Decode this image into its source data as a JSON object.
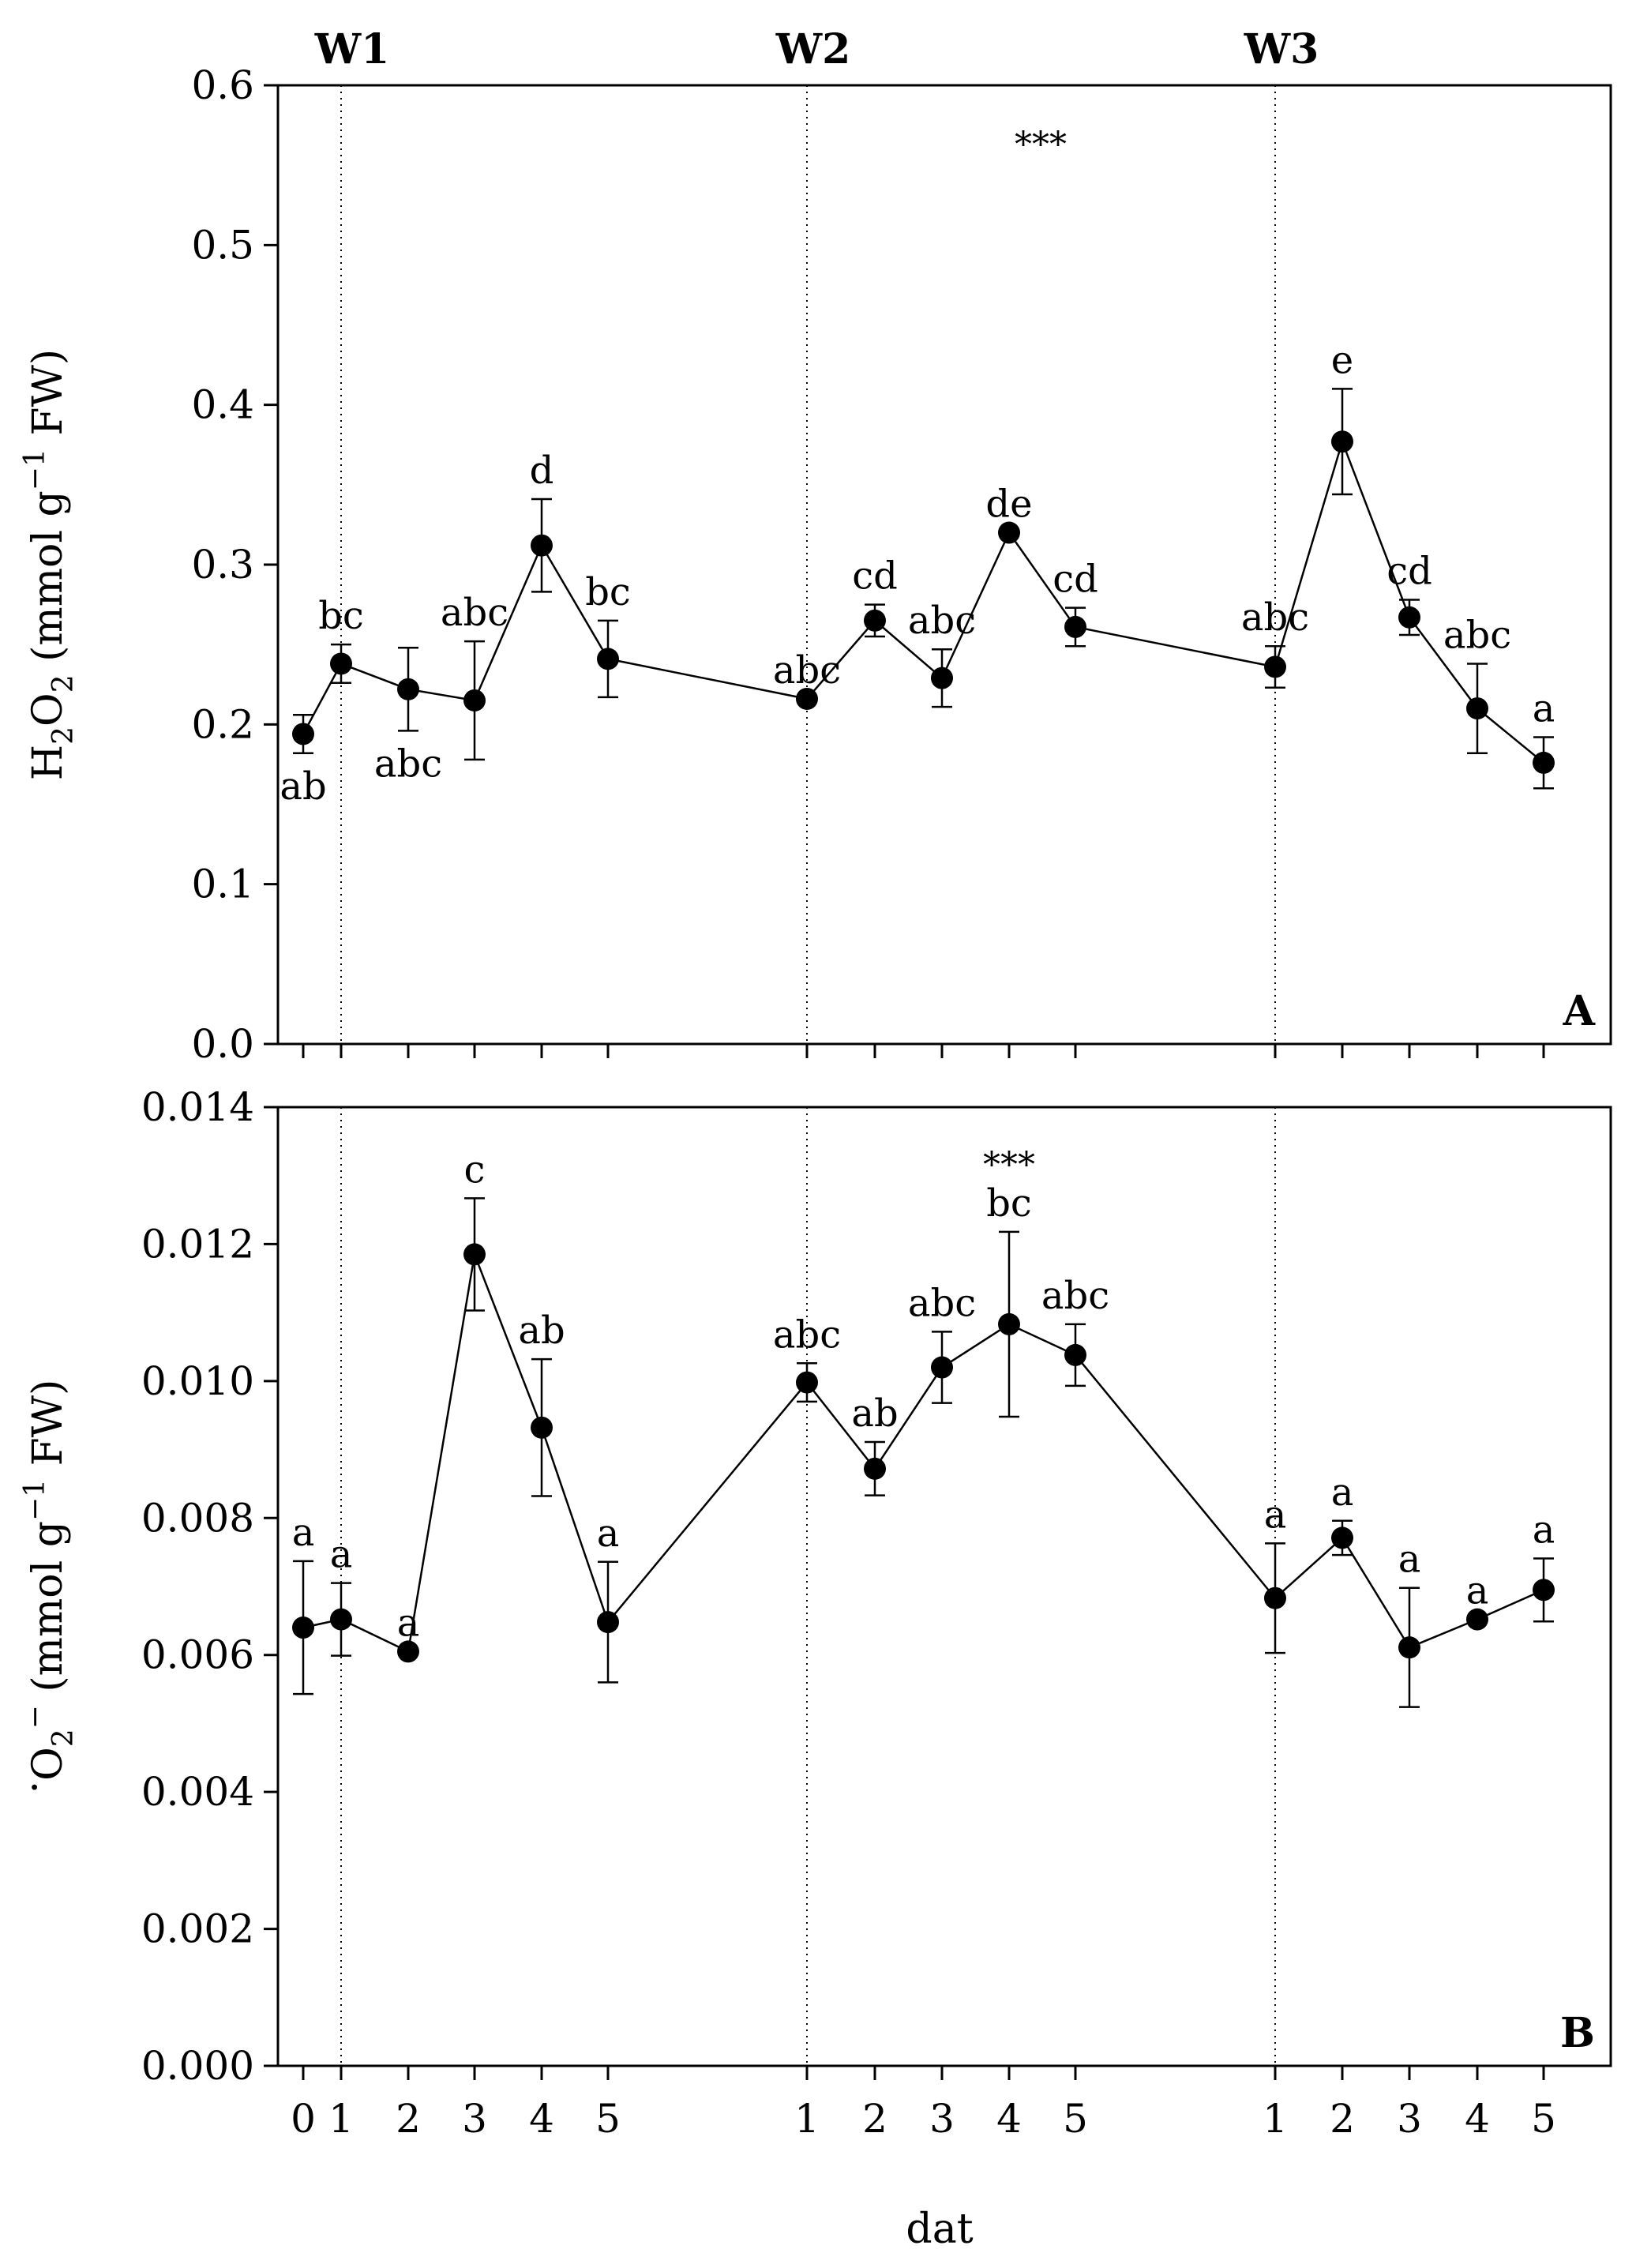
{
  "chart_data": {
    "type": "line",
    "x_tick_labels": [
      "0",
      "1",
      "2",
      "3",
      "4",
      "5",
      "1",
      "2",
      "3",
      "4",
      "5",
      "1",
      "2",
      "3",
      "4",
      "5"
    ],
    "x_axis_label": "dat",
    "week_labels": [
      {
        "label": "W1",
        "at_index": 1
      },
      {
        "label": "W2",
        "at_index": 6
      },
      {
        "label": "W3",
        "at_index": 11
      }
    ],
    "panels": [
      {
        "id": "A",
        "panel_label": "A",
        "ylabel": {
          "main": "H",
          "sub1": "2",
          "mid": "O",
          "sub2": "2",
          "pre_sup": " (mmol g",
          "sup": "−1",
          "post": " FW)"
        },
        "ylim": [
          0,
          0.6
        ],
        "yticks": [
          "0.0",
          "0.1",
          "0.2",
          "0.3",
          "0.4",
          "0.5",
          "0.6"
        ],
        "significance": "***",
        "significance_at_index": 9,
        "series": [
          {
            "name": "H2O2",
            "points": [
              {
                "x": 0,
                "y": 0.194,
                "err": 0.012,
                "letter": "ab",
                "letter_pos": "below"
              },
              {
                "x": 1,
                "y": 0.238,
                "err": 0.012,
                "letter": "bc",
                "letter_pos": "above"
              },
              {
                "x": 2,
                "y": 0.222,
                "err": 0.026,
                "letter": "abc",
                "letter_pos": "below"
              },
              {
                "x": 3,
                "y": 0.215,
                "err": 0.037,
                "letter": "abc",
                "letter_pos": "above"
              },
              {
                "x": 4,
                "y": 0.312,
                "err": 0.029,
                "letter": "d",
                "letter_pos": "above"
              },
              {
                "x": 5,
                "y": 0.241,
                "err": 0.024,
                "letter": "bc",
                "letter_pos": "above"
              },
              {
                "x": 6,
                "y": 0.216,
                "err": 0.0,
                "letter": "abc",
                "letter_pos": "above"
              },
              {
                "x": 7,
                "y": 0.265,
                "err": 0.01,
                "letter": "cd",
                "letter_pos": "above"
              },
              {
                "x": 8,
                "y": 0.229,
                "err": 0.018,
                "letter": "abc",
                "letter_pos": "above"
              },
              {
                "x": 9,
                "y": 0.32,
                "err": 0.0,
                "letter": "de",
                "letter_pos": "above"
              },
              {
                "x": 10,
                "y": 0.261,
                "err": 0.012,
                "letter": "cd",
                "letter_pos": "above"
              },
              {
                "x": 11,
                "y": 0.236,
                "err": 0.013,
                "letter": "abc",
                "letter_pos": "above"
              },
              {
                "x": 12,
                "y": 0.377,
                "err": 0.033,
                "letter": "e",
                "letter_pos": "above"
              },
              {
                "x": 13,
                "y": 0.267,
                "err": 0.011,
                "letter": "cd",
                "letter_pos": "above"
              },
              {
                "x": 14,
                "y": 0.21,
                "err": 0.028,
                "letter": "abc",
                "letter_pos": "above"
              },
              {
                "x": 15,
                "y": 0.176,
                "err": 0.016,
                "letter": "a",
                "letter_pos": "above"
              }
            ]
          }
        ]
      },
      {
        "id": "B",
        "panel_label": "B",
        "ylabel": {
          "dot": "·",
          "main": "O",
          "sub": "2",
          "sup": "−",
          "post": " (mmol g",
          "sup2": "−1",
          "post2": " FW)"
        },
        "ylim": [
          0,
          0.014
        ],
        "yticks": [
          "0.000",
          "0.002",
          "0.004",
          "0.006",
          "0.008",
          "0.010",
          "0.012",
          "0.014"
        ],
        "significance": "***",
        "significance_at_index": 9,
        "series": [
          {
            "name": "O2-",
            "points": [
              {
                "x": 0,
                "y": 0.0064,
                "err": 0.00097,
                "letter": "a",
                "letter_pos": "above"
              },
              {
                "x": 1,
                "y": 0.00652,
                "err": 0.00053,
                "letter": "a",
                "letter_pos": "above"
              },
              {
                "x": 2,
                "y": 0.00605,
                "err": 0.0,
                "letter": "a",
                "letter_pos": "above"
              },
              {
                "x": 3,
                "y": 0.01185,
                "err": 0.00082,
                "letter": "c",
                "letter_pos": "above"
              },
              {
                "x": 4,
                "y": 0.00932,
                "err": 0.001,
                "letter": "ab",
                "letter_pos": "above"
              },
              {
                "x": 5,
                "y": 0.00648,
                "err": 0.00088,
                "letter": "a",
                "letter_pos": "above"
              },
              {
                "x": 6,
                "y": 0.00998,
                "err": 0.00028,
                "letter": "abc",
                "letter_pos": "above"
              },
              {
                "x": 7,
                "y": 0.00872,
                "err": 0.00039,
                "letter": "ab",
                "letter_pos": "above"
              },
              {
                "x": 8,
                "y": 0.0102,
                "err": 0.00052,
                "letter": "abc",
                "letter_pos": "above"
              },
              {
                "x": 9,
                "y": 0.01083,
                "err": 0.00135,
                "letter": "bc",
                "letter_pos": "above"
              },
              {
                "x": 10,
                "y": 0.01038,
                "err": 0.00045,
                "letter": "abc",
                "letter_pos": "above"
              },
              {
                "x": 11,
                "y": 0.00683,
                "err": 0.0008,
                "letter": "a",
                "letter_pos": "above"
              },
              {
                "x": 12,
                "y": 0.00771,
                "err": 0.00025,
                "letter": "a",
                "letter_pos": "above"
              },
              {
                "x": 13,
                "y": 0.00611,
                "err": 0.00087,
                "letter": "a",
                "letter_pos": "above"
              },
              {
                "x": 14,
                "y": 0.00652,
                "err": 0.0,
                "letter": "a",
                "letter_pos": "above"
              },
              {
                "x": 15,
                "y": 0.00695,
                "err": 0.00046,
                "letter": "a",
                "letter_pos": "above"
              }
            ]
          }
        ]
      }
    ]
  }
}
